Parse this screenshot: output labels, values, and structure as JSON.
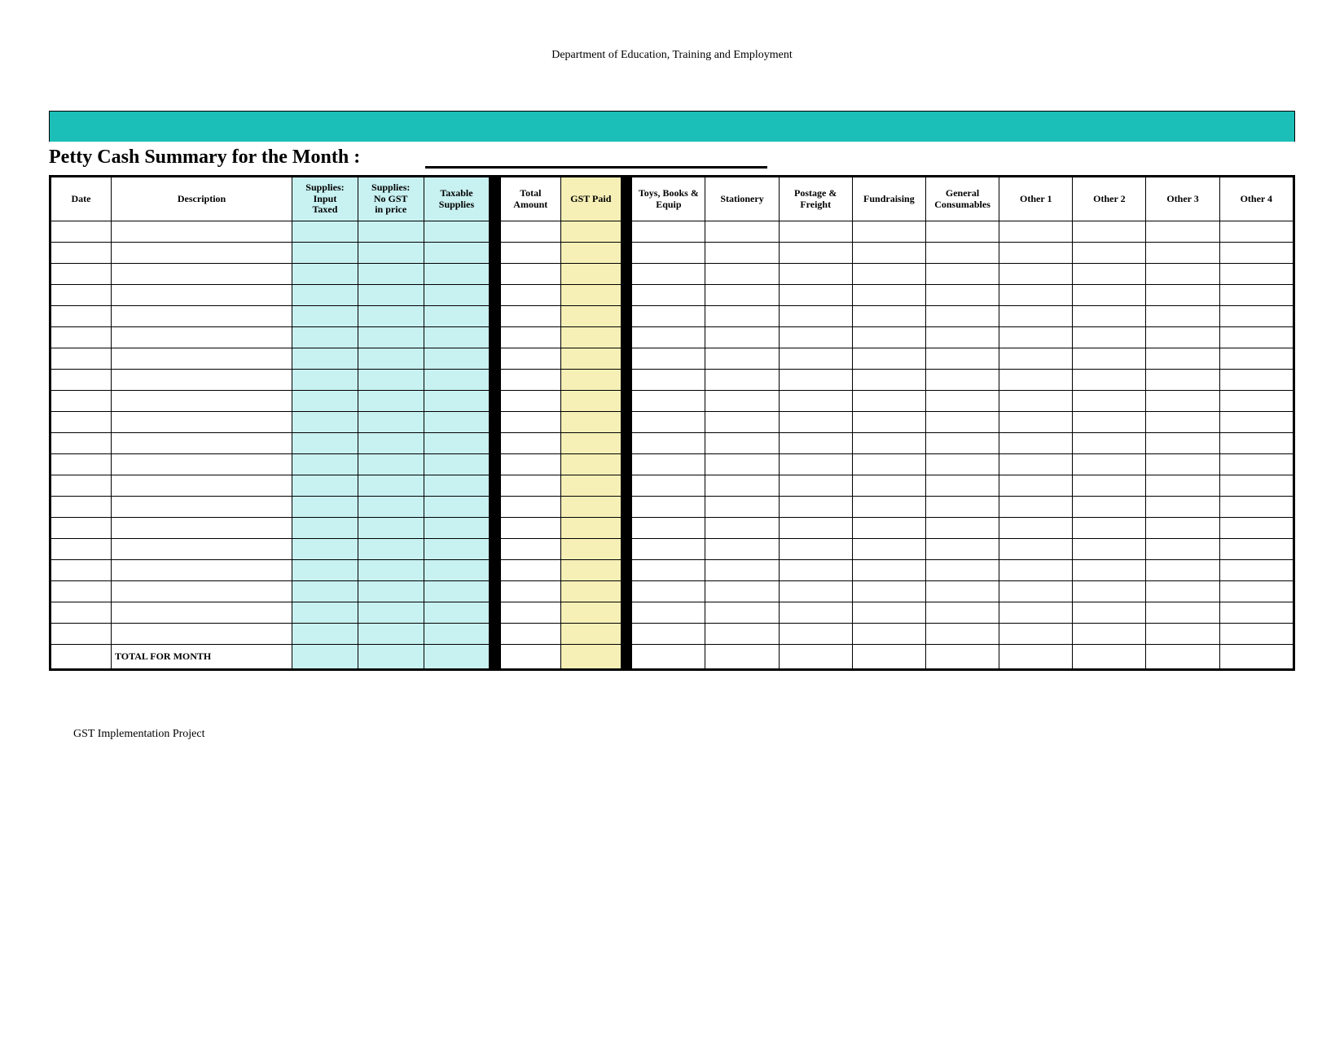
{
  "header": {
    "department": "Department of Education, Training and Employment"
  },
  "title": "Petty Cash Summary for the Month :",
  "footer": "GST Implementation Project",
  "colors": {
    "teal_bar": "#1bbfb8",
    "cyan_fill": "#c8f1f1",
    "yellow_fill": "#f6f0b6",
    "black": "#000000",
    "white": "#ffffff"
  },
  "columns": [
    {
      "key": "date",
      "label": "Date",
      "class": "c-date"
    },
    {
      "key": "desc",
      "label": "Description",
      "class": "c-desc"
    },
    {
      "key": "sup_taxed",
      "label": "Supplies: Input Taxed",
      "class": "c-sup",
      "fill": "cyan"
    },
    {
      "key": "sup_nogst",
      "label": "Supplies: No GST in price",
      "class": "c-sup",
      "fill": "cyan"
    },
    {
      "key": "sup_taxable",
      "label": "Taxable Supplies",
      "class": "c-sup",
      "fill": "cyan"
    },
    {
      "key": "gap1",
      "label": "",
      "class": "c-gap1",
      "fill": "black"
    },
    {
      "key": "total",
      "label": "Total Amount",
      "class": "c-tot"
    },
    {
      "key": "gst",
      "label": "GST Paid",
      "class": "c-gst",
      "fill": "yellow"
    },
    {
      "key": "gap2",
      "label": "",
      "class": "c-gap2",
      "fill": "black"
    },
    {
      "key": "toys",
      "label": "Toys, Books & Equip",
      "class": "c-cat"
    },
    {
      "key": "stationery",
      "label": "Stationery",
      "class": "c-cat"
    },
    {
      "key": "postage",
      "label": "Postage & Freight",
      "class": "c-cat"
    },
    {
      "key": "fund",
      "label": "Fundraising",
      "class": "c-cat"
    },
    {
      "key": "consum",
      "label": "General Consumables",
      "class": "c-cat"
    },
    {
      "key": "other1",
      "label": "Other 1",
      "class": "c-cat"
    },
    {
      "key": "other2",
      "label": "Other 2",
      "class": "c-cat"
    },
    {
      "key": "other3",
      "label": "Other 3",
      "class": "c-cat"
    },
    {
      "key": "other4",
      "label": "Other 4",
      "class": "c-cat"
    }
  ],
  "body_row_count": 20,
  "total_row_label": "TOTAL FOR MONTH"
}
